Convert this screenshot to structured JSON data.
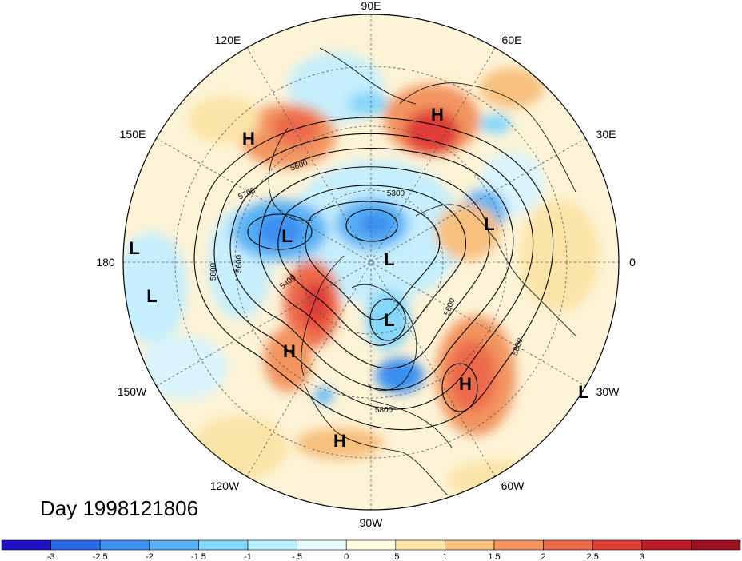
{
  "title": "Day 1998121806",
  "longitude_labels": {
    "n90E": "90E",
    "n120E": "120E",
    "n60E": "60E",
    "n150E": "150E",
    "n30E": "30E",
    "n180": "180",
    "n0": "0",
    "n150W": "150W",
    "n30W": "30W",
    "n120W": "120W",
    "n60W": "60W",
    "n90W": "90W"
  },
  "pressure_centers": [
    {
      "type": "H",
      "name": "high-east-asia"
    },
    {
      "type": "H",
      "name": "high-west-pacific"
    },
    {
      "type": "H",
      "name": "high-northeast-pacific"
    },
    {
      "type": "H",
      "name": "high-central-atlantic"
    },
    {
      "type": "H",
      "name": "high-gulf-of-mexico"
    },
    {
      "type": "L",
      "name": "low-north-pacific"
    },
    {
      "type": "L",
      "name": "low-arctic"
    },
    {
      "type": "L",
      "name": "low-hudson-bay"
    },
    {
      "type": "L",
      "name": "low-europe"
    },
    {
      "type": "L",
      "name": "low-date-line-edge"
    },
    {
      "type": "L",
      "name": "low-central-pacific"
    },
    {
      "type": "L",
      "name": "low-east-atlantic-edge"
    }
  ],
  "contour_labels": [
    "5600",
    "5700",
    "5300",
    "5800",
    "5600",
    "5400",
    "5600",
    "5800",
    "5800"
  ],
  "colorbar": {
    "colors": [
      "#1f12c8",
      "#2a67e8",
      "#3b8ff0",
      "#5ab2f6",
      "#84d6fa",
      "#b9f0fd",
      "#e6fbff",
      "#fffde0",
      "#fbe4a8",
      "#f7c07e",
      "#f29460",
      "#ec6a4c",
      "#e03c38",
      "#bf1a2a",
      "#a00e22"
    ],
    "tick_labels": [
      "-3",
      "-2.5",
      "-2",
      "-1.5",
      "-1",
      "-.5",
      "0",
      ".5",
      "1",
      "1.5",
      "2",
      "2.5",
      "3"
    ]
  }
}
